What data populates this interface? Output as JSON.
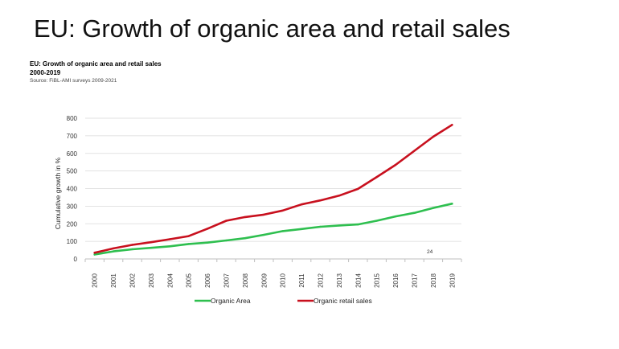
{
  "slide": {
    "title": "EU: Growth of organic area and retail sales"
  },
  "header": {
    "title_line1": "EU: Growth of organic area and retail sales",
    "title_line2": "2000-2019",
    "source": "Source: FiBL-AMI surveys 2009-2021"
  },
  "page_number": "24",
  "colors": {
    "organic_area": "#2ebf4f",
    "retail_sales": "#c8101e",
    "grid": "#d9d9d9"
  },
  "chart_data": {
    "type": "line",
    "title": "EU: Growth of organic area and retail sales 2000-2019",
    "xlabel": "",
    "ylabel": "Cumulative growth in %",
    "ylim": [
      0,
      800
    ],
    "yticks": [
      "0",
      "100",
      "200",
      "300",
      "400",
      "500",
      "600",
      "700",
      "800"
    ],
    "categories": [
      "2000",
      "2001",
      "2002",
      "2003",
      "2004",
      "2005",
      "2006",
      "2007",
      "2008",
      "2009",
      "2010",
      "2011",
      "2012",
      "2013",
      "2014",
      "2015",
      "2016",
      "2017",
      "2018",
      "2019"
    ],
    "series": [
      {
        "name": "Organic Area",
        "values": [
          25,
          43,
          55,
          63,
          72,
          85,
          93,
          105,
          118,
          137,
          158,
          170,
          183,
          190,
          196,
          217,
          242,
          262,
          290,
          314
        ]
      },
      {
        "name": "Organic retail sales",
        "values": [
          35,
          60,
          80,
          95,
          112,
          130,
          172,
          217,
          238,
          252,
          275,
          310,
          333,
          360,
          398,
          466,
          535,
          615,
          695,
          762
        ]
      }
    ],
    "grid": true,
    "legend": "bottom"
  }
}
